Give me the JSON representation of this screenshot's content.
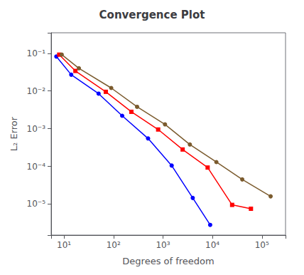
{
  "chart_data": {
    "type": "line",
    "title": "Convergence Plot",
    "xlabel": "Degrees of freedom",
    "ylabel": "L₂ Error",
    "log": true,
    "grid": false,
    "series": [
      {
        "color": "blue",
        "marker": "circle",
        "x": [
          7,
          14,
          50,
          150,
          500,
          1500,
          4000,
          9000
        ],
        "values": [
          0.082,
          0.027,
          0.0085,
          0.0022,
          0.00055,
          0.000105,
          1.45e-05,
          2.8e-06
        ]
      },
      {
        "color": "red",
        "marker": "square",
        "x": [
          8,
          17,
          70,
          230,
          800,
          2500,
          8000,
          25000,
          60000
        ],
        "values": [
          0.092,
          0.034,
          0.0095,
          0.0028,
          0.00095,
          0.00028,
          9.3e-05,
          9.5e-06,
          7.5e-06
        ]
      },
      {
        "color": "#7B5B2E",
        "marker": "circle",
        "x": [
          9,
          20,
          90,
          300,
          1100,
          3500,
          12000,
          40000,
          150000
        ],
        "values": [
          0.092,
          0.04,
          0.012,
          0.0038,
          0.0013,
          0.00038,
          0.00013,
          4.5e-05,
          1.6e-05
        ]
      }
    ],
    "xlim": [
      5.5,
      300000
    ],
    "ylim": [
      1.5e-06,
      0.35
    ],
    "xticks": [
      {
        "value": 10,
        "label": "10¹"
      },
      {
        "value": 100,
        "label": "10²"
      },
      {
        "value": 1000,
        "label": "10³"
      },
      {
        "value": 10000,
        "label": "10⁴"
      },
      {
        "value": 100000,
        "label": "10⁵"
      }
    ],
    "yticks": [
      {
        "value": 1e-05,
        "label": "10⁻⁵"
      },
      {
        "value": 0.0001,
        "label": "10⁻⁴"
      },
      {
        "value": 0.001,
        "label": "10⁻³"
      },
      {
        "value": 0.01,
        "label": "10⁻²"
      },
      {
        "value": 0.1,
        "label": "10⁻¹"
      }
    ]
  }
}
